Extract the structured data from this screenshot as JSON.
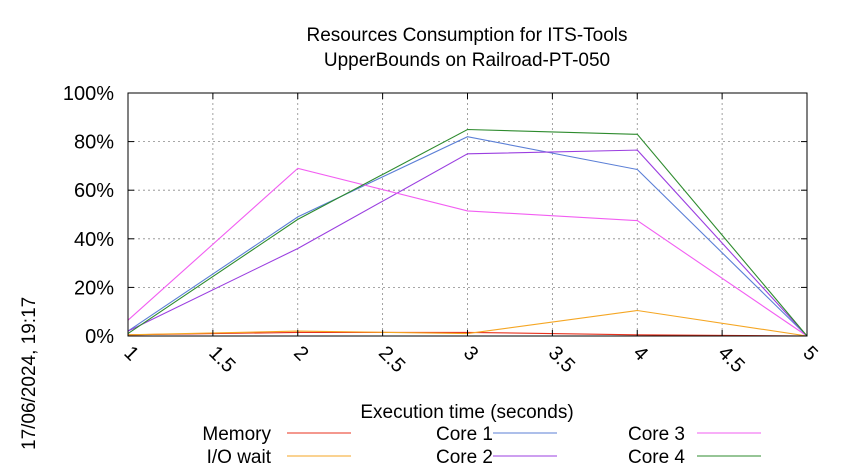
{
  "chart_data": {
    "type": "line",
    "title_line1": "Resources Consumption for ITS-Tools",
    "title_line2": "UpperBounds on Railroad-PT-050",
    "xlabel": "Execution time (seconds)",
    "ylabel": "",
    "xlim": [
      1,
      5
    ],
    "ylim": [
      0,
      100
    ],
    "x_ticks": [
      "1",
      "1.5",
      "2",
      "2.5",
      "3",
      "3.5",
      "4",
      "4.5",
      "5"
    ],
    "y_ticks": [
      "0%",
      "20%",
      "40%",
      "60%",
      "80%",
      "100%"
    ],
    "grid": true,
    "legend_position": "bottom",
    "timestamp": "17/06/2024, 19:17",
    "series": [
      {
        "name": "Memory",
        "color": "#e8321e",
        "x": [
          1,
          2,
          3,
          4,
          5
        ],
        "y": [
          0.5,
          1.5,
          1.5,
          0.5,
          0
        ]
      },
      {
        "name": "I/O wait",
        "color": "#f5a623",
        "x": [
          1,
          2,
          3,
          4,
          5
        ],
        "y": [
          0.5,
          2,
          1,
          10.5,
          0
        ]
      },
      {
        "name": "Core 1",
        "color": "#5b7fd6",
        "x": [
          1,
          2,
          3,
          4,
          5
        ],
        "y": [
          2,
          49,
          82,
          68.5,
          0
        ]
      },
      {
        "name": "Core 2",
        "color": "#9b3fe0",
        "x": [
          1,
          2,
          3,
          4,
          5
        ],
        "y": [
          2,
          36,
          75,
          76.5,
          0
        ]
      },
      {
        "name": "Core 3",
        "color": "#f25ef2",
        "x": [
          1,
          2,
          3,
          4,
          5
        ],
        "y": [
          6.5,
          69,
          51.5,
          47.5,
          0
        ]
      },
      {
        "name": "Core 4",
        "color": "#2e8b2e",
        "x": [
          1,
          2,
          3,
          4,
          5
        ],
        "y": [
          1,
          48,
          85,
          83,
          0
        ]
      }
    ]
  }
}
